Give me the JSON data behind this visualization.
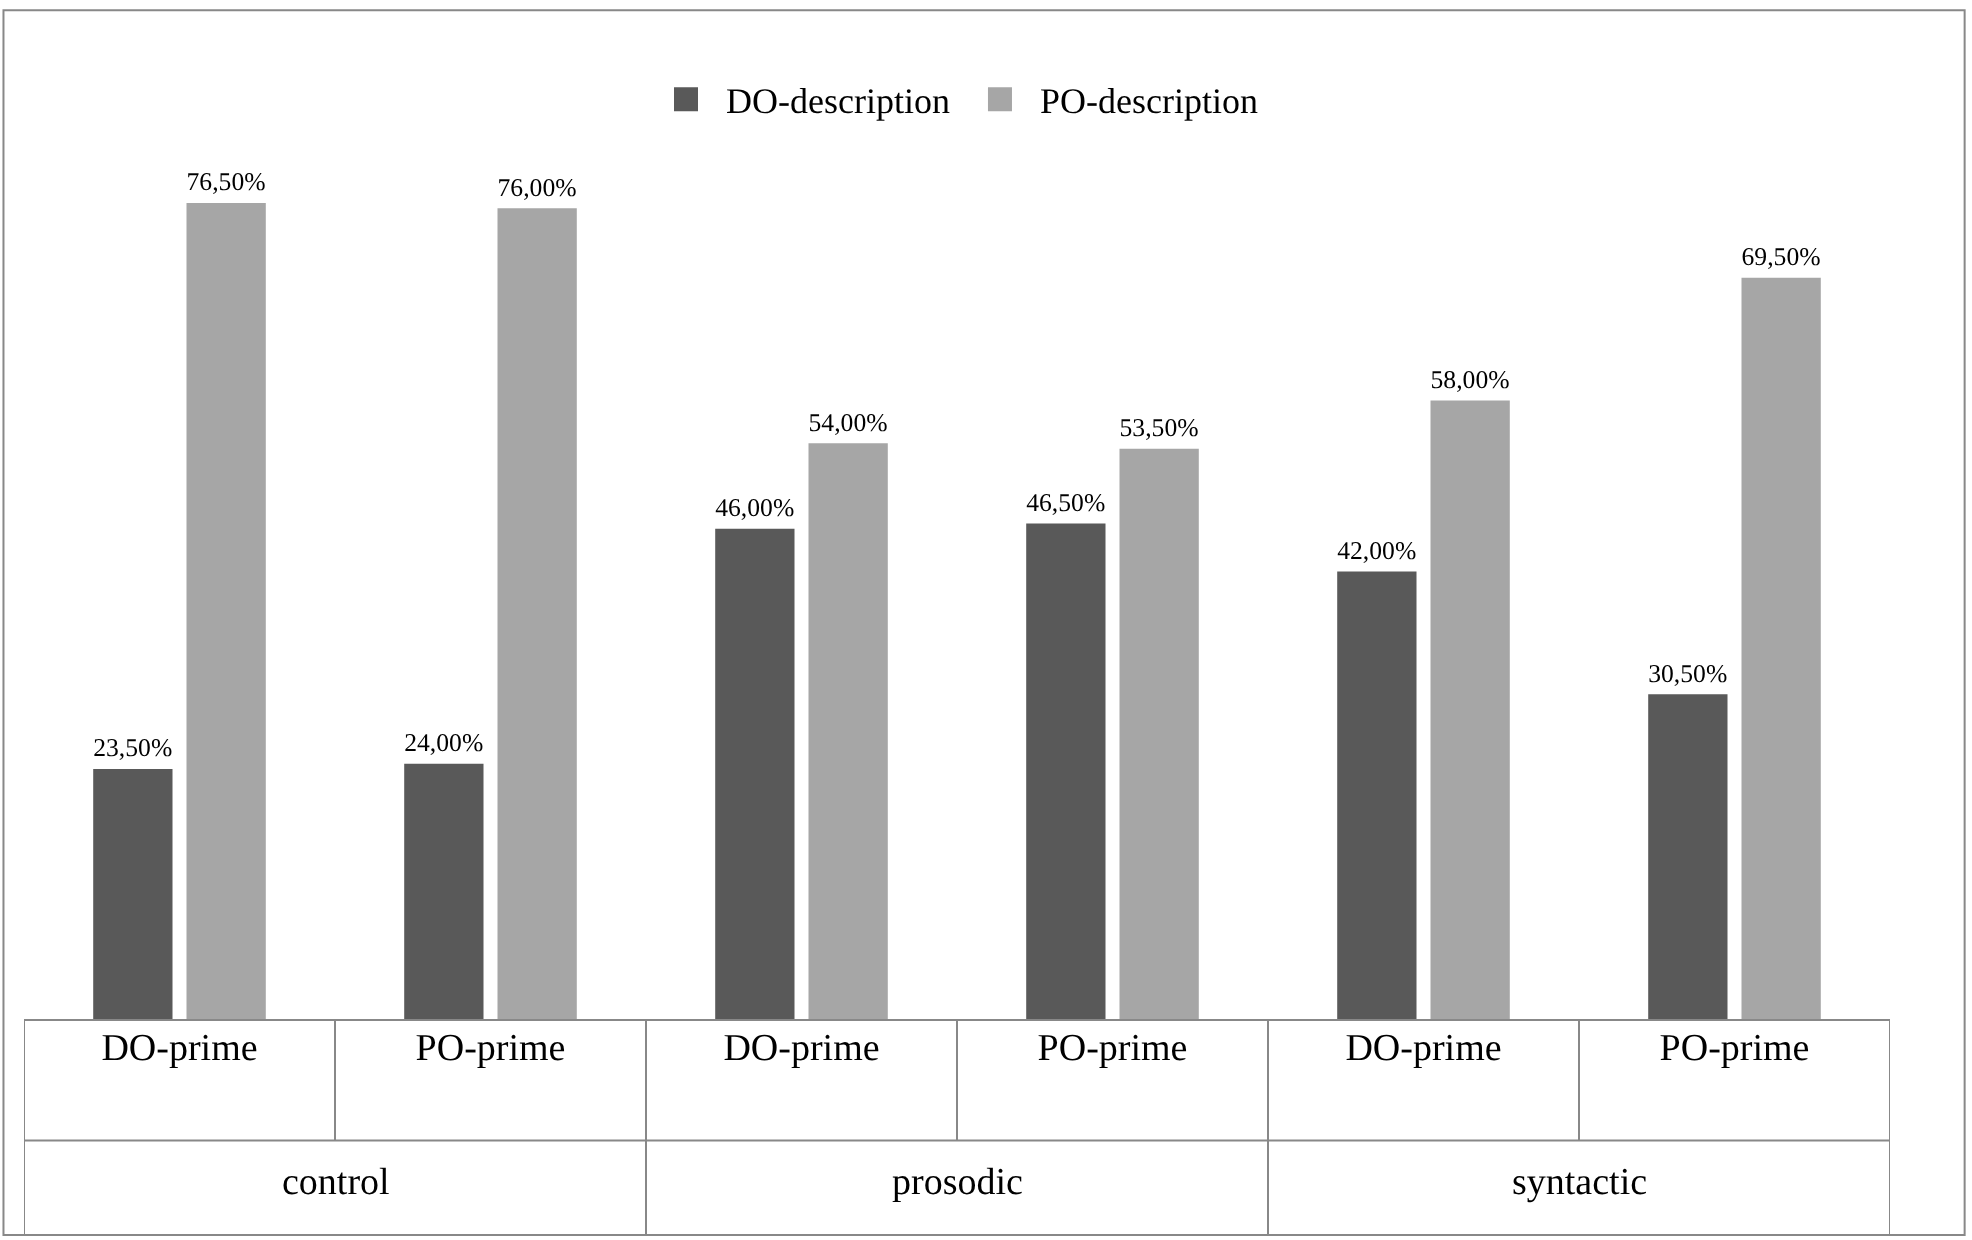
{
  "chart_data": {
    "type": "bar",
    "categories": [
      "DO-prime",
      "PO-prime",
      "DO-prime",
      "PO-prime",
      "DO-prime",
      "PO-prime"
    ],
    "series": [
      {
        "name": "DO-description",
        "color": "#595959",
        "values": [
          23.5,
          24.0,
          46.0,
          46.5,
          42.0,
          30.5
        ],
        "value_labels": [
          "23,50%",
          "24,00%",
          "46,00%",
          "46,50%",
          "42,00%",
          "30,50%"
        ]
      },
      {
        "name": "PO-description",
        "color": "#a6a6a6",
        "values": [
          76.5,
          76.0,
          54.0,
          53.5,
          58.0,
          69.5
        ],
        "value_labels": [
          "76,50%",
          "76,00%",
          "54,00%",
          "53,50%",
          "58,00%",
          "69,50%"
        ]
      }
    ],
    "annotations": [
      "control",
      "prosodic",
      "syntactic"
    ],
    "legend": "top"
  }
}
